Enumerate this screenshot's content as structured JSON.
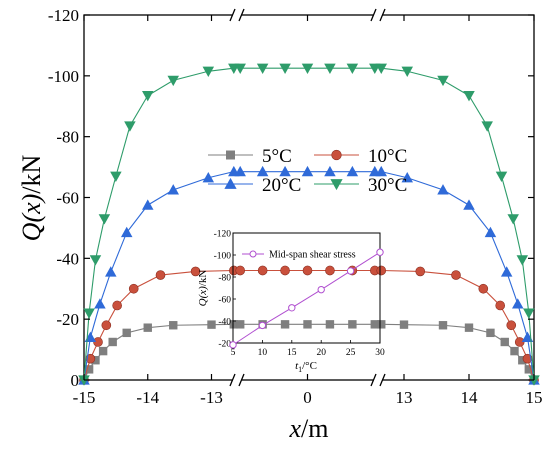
{
  "chart_data": [
    {
      "type": "line",
      "title": "",
      "xlabel_italic": "x",
      "xlabel_unit": "/m",
      "ylabel_italic": "Q(x)",
      "ylabel_unit": "/kN",
      "ylim": [
        -120,
        0
      ],
      "yticks": [
        0,
        -20,
        -40,
        -60,
        -80,
        -100,
        -120
      ],
      "y_tick_labels": [
        "0",
        "-20",
        "-40",
        "-60",
        "-80",
        "-100",
        "-120"
      ],
      "x_axis_broken": true,
      "x_segments": [
        [
          -15,
          -12.6
        ],
        [
          -1.1,
          1.1
        ],
        [
          12.6,
          15
        ]
      ],
      "xtick_values": [
        -15,
        -14,
        -13,
        0,
        13,
        14,
        15
      ],
      "x_tick_labels": [
        "-15",
        "-14",
        "-13",
        "0",
        "13",
        "14",
        "15"
      ],
      "grid": false,
      "legend_position": "center-right",
      "series": [
        {
          "name": "5°C",
          "color": "#7f7f7f",
          "marker": "square",
          "x": [
            -15,
            -14.92,
            -14.82,
            -14.7,
            -14.55,
            -14.33,
            -14.0,
            -13.6,
            -13.0,
            -12.65,
            -1.05,
            -0.7,
            -0.35,
            0,
            0.35,
            0.7,
            1.05,
            12.65,
            13.0,
            13.6,
            14.0,
            14.33,
            14.55,
            14.7,
            14.82,
            14.92,
            15
          ],
          "y": [
            0,
            -3.5,
            -6.5,
            -9.5,
            -12.5,
            -15.5,
            -17.2,
            -18.0,
            -18.2,
            -18.3,
            -18.3,
            -18.3,
            -18.3,
            -18.3,
            -18.3,
            -18.3,
            -18.3,
            -18.3,
            -18.2,
            -18.0,
            -17.2,
            -15.5,
            -12.5,
            -9.5,
            -6.5,
            -3.5,
            0
          ]
        },
        {
          "name": "10°C",
          "color": "#c9503c",
          "marker": "circle",
          "x": [
            -15,
            -14.9,
            -14.78,
            -14.65,
            -14.48,
            -14.22,
            -13.8,
            -13.25,
            -12.65,
            -1.05,
            -0.7,
            -0.35,
            0,
            0.35,
            0.7,
            1.05,
            12.65,
            13.25,
            13.8,
            14.22,
            14.48,
            14.65,
            14.78,
            14.9,
            15
          ],
          "y": [
            0,
            -7,
            -12.5,
            -18,
            -24.5,
            -30,
            -34.5,
            -35.7,
            -36,
            -36,
            -36,
            -36,
            -36,
            -36,
            -36,
            -36,
            -36,
            -35.7,
            -34.5,
            -30,
            -24.5,
            -18,
            -12.5,
            -7,
            0
          ]
        },
        {
          "name": "20°C",
          "color": "#2f6ad8",
          "marker": "triangle-up",
          "x": [
            -15,
            -14.9,
            -14.75,
            -14.58,
            -14.33,
            -14.0,
            -13.6,
            -13.05,
            -12.65,
            -1.05,
            -0.7,
            -0.35,
            0,
            0.35,
            0.7,
            1.05,
            12.65,
            13.05,
            13.6,
            14.0,
            14.33,
            14.58,
            14.75,
            14.9,
            15
          ],
          "y": [
            0,
            -14,
            -25,
            -35.5,
            -48.5,
            -57.5,
            -62.5,
            -66.5,
            -68.5,
            -68.5,
            -68.5,
            -68.5,
            -68.5,
            -68.5,
            -68.5,
            -68.5,
            -68.5,
            -66.5,
            -62.5,
            -57.5,
            -48.5,
            -35.5,
            -25,
            -14,
            0
          ]
        },
        {
          "name": "30°C",
          "color": "#2e9c6a",
          "marker": "triangle-down",
          "x": [
            -15,
            -14.92,
            -14.82,
            -14.68,
            -14.5,
            -14.28,
            -14.0,
            -13.6,
            -13.05,
            -12.65,
            -1.05,
            -0.7,
            -0.35,
            0,
            0.35,
            0.7,
            1.05,
            12.65,
            13.05,
            13.6,
            14.0,
            14.28,
            14.5,
            14.68,
            14.82,
            14.92,
            15
          ],
          "y": [
            0,
            -22,
            -39.5,
            -53,
            -67,
            -83.5,
            -93.5,
            -98.5,
            -101.5,
            -102.5,
            -102.5,
            -102.5,
            -102.5,
            -102.5,
            -102.5,
            -102.5,
            -102.5,
            -102.5,
            -101.5,
            -98.5,
            -93.5,
            -83.5,
            -67,
            -53,
            -39.5,
            -22,
            0
          ]
        }
      ]
    },
    {
      "type": "line",
      "title": "",
      "xlabel_italic": "t",
      "xlabel_sub": "1",
      "xlabel_unit": "/°C",
      "ylabel_italic": "Q(x)",
      "ylabel_unit": "/kN",
      "xlim": [
        5,
        30
      ],
      "ylim": [
        -20,
        -120
      ],
      "xticks": [
        5,
        10,
        15,
        20,
        25,
        30
      ],
      "x_tick_labels": [
        "5",
        "10",
        "15",
        "20",
        "25",
        "30"
      ],
      "yticks": [
        -20,
        -40,
        -60,
        -80,
        -100,
        -120
      ],
      "y_tick_labels": [
        "-20",
        "-40",
        "-60",
        "-80",
        "-100",
        "-120"
      ],
      "grid": false,
      "legend_position": "top-left",
      "series": [
        {
          "name": "Mid-span shear stress",
          "color": "#b04fd0",
          "marker": "circle-open",
          "x": [
            5,
            10,
            15,
            20,
            25,
            30
          ],
          "y": [
            -18.3,
            -36,
            -52,
            -68.5,
            -85.5,
            -102.5
          ]
        }
      ]
    }
  ]
}
